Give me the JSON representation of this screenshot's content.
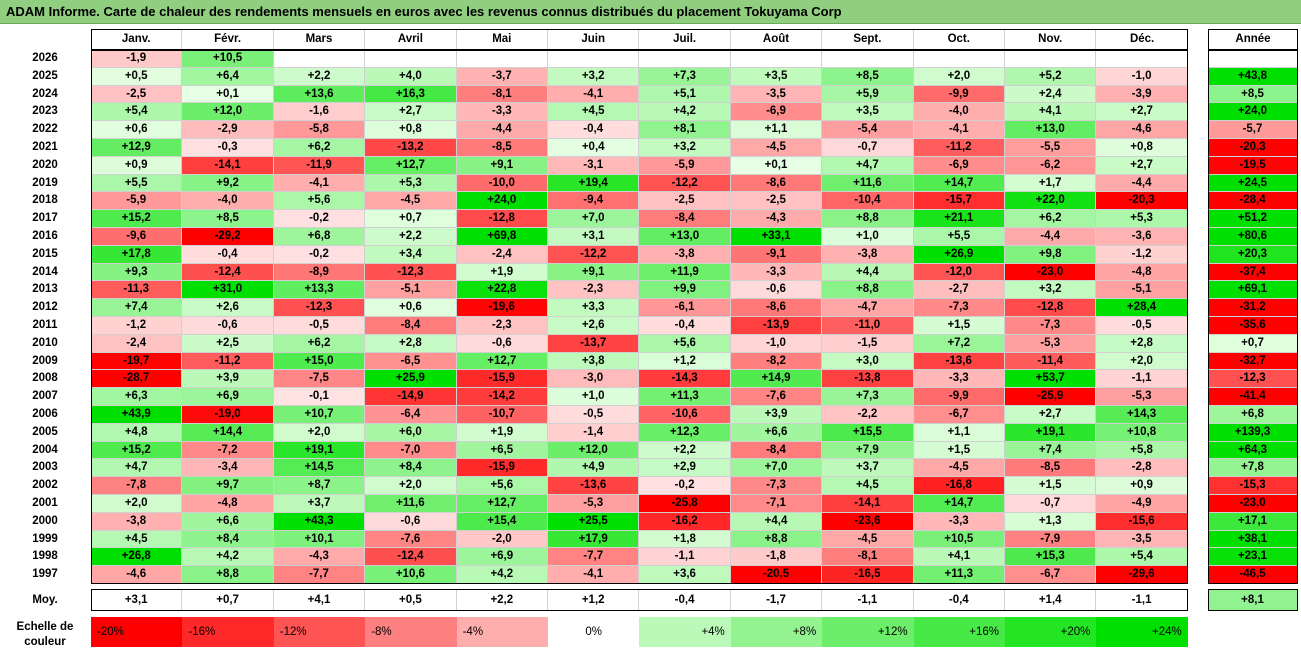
{
  "title": "ADAM Informe. Carte de chaleur des rendements mensuels en euros avec les revenus connus distribués du placement Tokuyama Corp",
  "chart_data": {
    "type": "heatmap",
    "columns": [
      "Janv.",
      "Févr.",
      "Mars",
      "Avril",
      "Mai",
      "Juin",
      "Juil.",
      "Août",
      "Sept.",
      "Oct.",
      "Nov.",
      "Déc."
    ],
    "year_label": "Année",
    "rows": [
      {
        "year": "2026",
        "values": [
          "-1,9",
          "+10,5",
          "",
          "",
          "",
          "",
          "",
          "",
          "",
          "",
          "",
          ""
        ],
        "annual": ""
      },
      {
        "year": "2025",
        "values": [
          "+0,5",
          "+6,4",
          "+2,2",
          "+4,0",
          "-3,7",
          "+3,2",
          "+7,3",
          "+3,5",
          "+8,5",
          "+2,0",
          "+5,2",
          "-1,0"
        ],
        "annual": "+43,8"
      },
      {
        "year": "2024",
        "values": [
          "-2,5",
          "+0,1",
          "+13,6",
          "+16,3",
          "-8,1",
          "-4,1",
          "+5,1",
          "-3,5",
          "+5,9",
          "-9,9",
          "+2,4",
          "-3,9"
        ],
        "annual": "+8,5"
      },
      {
        "year": "2023",
        "values": [
          "+5,4",
          "+12,0",
          "-1,6",
          "+2,7",
          "-3,3",
          "+4,5",
          "+4,2",
          "-6,9",
          "+3,5",
          "-4,0",
          "+4,1",
          "+2,7"
        ],
        "annual": "+24,0"
      },
      {
        "year": "2022",
        "values": [
          "+0,6",
          "-2,9",
          "-5,8",
          "+0,8",
          "-4,4",
          "-0,4",
          "+8,1",
          "+1,1",
          "-5,4",
          "-4,1",
          "+13,0",
          "-4,6"
        ],
        "annual": "-5,7"
      },
      {
        "year": "2021",
        "values": [
          "+12,9",
          "-0,3",
          "+6,2",
          "-13,2",
          "-8,5",
          "+0,4",
          "+3,2",
          "-4,5",
          "-0,7",
          "-11,2",
          "-5,5",
          "+0,8"
        ],
        "annual": "-20,3"
      },
      {
        "year": "2020",
        "values": [
          "+0,9",
          "-14,1",
          "-11,9",
          "+12,7",
          "+9,1",
          "-3,1",
          "-5,9",
          "+0,1",
          "+4,7",
          "-6,9",
          "-6,2",
          "+2,7"
        ],
        "annual": "-19,5"
      },
      {
        "year": "2019",
        "values": [
          "+5,5",
          "+9,2",
          "-4,1",
          "+5,3",
          "-10,0",
          "+19,4",
          "-12,2",
          "-8,6",
          "+11,6",
          "+14,7",
          "+1,7",
          "-4,4"
        ],
        "annual": "+24,5"
      },
      {
        "year": "2018",
        "values": [
          "-5,9",
          "-4,0",
          "+5,6",
          "-4,5",
          "+24,0",
          "-9,4",
          "-2,5",
          "-2,5",
          "-10,4",
          "-15,7",
          "+22,0",
          "-20,3"
        ],
        "annual": "-28,4"
      },
      {
        "year": "2017",
        "values": [
          "+15,2",
          "+8,5",
          "-0,2",
          "+0,7",
          "-12,8",
          "+7,0",
          "-8,4",
          "-4,3",
          "+8,8",
          "+21,1",
          "+6,2",
          "+5,3"
        ],
        "annual": "+51,2"
      },
      {
        "year": "2016",
        "values": [
          "-9,6",
          "-29,2",
          "+6,8",
          "+2,2",
          "+69,8",
          "+3,1",
          "+13,0",
          "+33,1",
          "+1,0",
          "+5,5",
          "-4,4",
          "-3,6"
        ],
        "annual": "+80,6"
      },
      {
        "year": "2015",
        "values": [
          "+17,8",
          "-0,4",
          "-0,2",
          "+3,4",
          "-2,4",
          "-12,2",
          "-3,8",
          "-9,1",
          "-3,8",
          "+26,9",
          "+9,8",
          "-1,2"
        ],
        "annual": "+20,3"
      },
      {
        "year": "2014",
        "values": [
          "+9,3",
          "-12,4",
          "-8,9",
          "-12,3",
          "+1,9",
          "+9,1",
          "+11,9",
          "-3,3",
          "+4,4",
          "-12,0",
          "-23,0",
          "-4,8"
        ],
        "annual": "-37,4"
      },
      {
        "year": "2013",
        "values": [
          "-11,3",
          "+31,0",
          "+13,3",
          "-5,1",
          "+22,8",
          "-2,3",
          "+9,9",
          "-0,6",
          "+8,8",
          "-2,7",
          "+3,2",
          "-5,1"
        ],
        "annual": "+69,1"
      },
      {
        "year": "2012",
        "values": [
          "+7,4",
          "+2,6",
          "-12,3",
          "+0,6",
          "-19,6",
          "+3,3",
          "-6,1",
          "-8,6",
          "-4,7",
          "-7,3",
          "-12,8",
          "+28,4"
        ],
        "annual": "-31,2"
      },
      {
        "year": "2011",
        "values": [
          "-1,2",
          "-0,6",
          "-0,5",
          "-8,4",
          "-2,3",
          "+2,6",
          "-0,4",
          "-13,9",
          "-11,0",
          "+1,5",
          "-7,3",
          "-0,5"
        ],
        "annual": "-35,6"
      },
      {
        "year": "2010",
        "values": [
          "-2,4",
          "+2,5",
          "+6,2",
          "+2,8",
          "-0,6",
          "-13,7",
          "+5,6",
          "-1,0",
          "-1,5",
          "+7,2",
          "-5,3",
          "+2,8"
        ],
        "annual": "+0,7"
      },
      {
        "year": "2009",
        "values": [
          "-19,7",
          "-11,2",
          "+15,0",
          "-6,5",
          "+12,7",
          "+3,8",
          "+1,2",
          "-8,2",
          "+3,0",
          "-13,6",
          "-11,4",
          "+2,0"
        ],
        "annual": "-32,7"
      },
      {
        "year": "2008",
        "values": [
          "-28,7",
          "+3,9",
          "-7,5",
          "+25,9",
          "-15,9",
          "-3,0",
          "-14,3",
          "+14,9",
          "-13,8",
          "-3,3",
          "+53,7",
          "-1,1"
        ],
        "annual": "-12,3"
      },
      {
        "year": "2007",
        "values": [
          "+6,3",
          "+6,9",
          "-0,1",
          "-14,9",
          "-14,2",
          "+1,0",
          "+11,3",
          "-7,6",
          "+7,3",
          "-9,9",
          "-25,9",
          "-5,3"
        ],
        "annual": "-41,4"
      },
      {
        "year": "2006",
        "values": [
          "+43,9",
          "-19,0",
          "+10,7",
          "-6,4",
          "-10,7",
          "-0,5",
          "-10,6",
          "+3,9",
          "-2,2",
          "-6,7",
          "+2,7",
          "+14,3"
        ],
        "annual": "+6,8"
      },
      {
        "year": "2005",
        "values": [
          "+4,8",
          "+14,4",
          "+2,0",
          "+6,0",
          "+1,9",
          "-1,4",
          "+12,3",
          "+6,6",
          "+15,5",
          "+1,1",
          "+19,1",
          "+10,8"
        ],
        "annual": "+139,3"
      },
      {
        "year": "2004",
        "values": [
          "+15,2",
          "-7,2",
          "+19,1",
          "-7,0",
          "+6,5",
          "+12,0",
          "+2,2",
          "-8,4",
          "+7,9",
          "+1,5",
          "+7,4",
          "+5,8"
        ],
        "annual": "+64,3"
      },
      {
        "year": "2003",
        "values": [
          "+4,7",
          "-3,4",
          "+14,5",
          "+8,4",
          "-15,9",
          "+4,9",
          "+2,9",
          "+7,0",
          "+3,7",
          "-4,5",
          "-8,5",
          "-2,8"
        ],
        "annual": "+7,8"
      },
      {
        "year": "2002",
        "values": [
          "-7,8",
          "+9,7",
          "+8,7",
          "+2,0",
          "+5,6",
          "-13,6",
          "-0,2",
          "-7,3",
          "+4,5",
          "-16,8",
          "+1,5",
          "+0,9"
        ],
        "annual": "-15,3"
      },
      {
        "year": "2001",
        "values": [
          "+2,0",
          "-4,8",
          "+3,7",
          "+11,6",
          "+12,7",
          "-5,3",
          "-25,8",
          "-7,1",
          "-14,1",
          "+14,7",
          "-0,7",
          "-4,9"
        ],
        "annual": "-23,0"
      },
      {
        "year": "2000",
        "values": [
          "-3,8",
          "+6,6",
          "+43,3",
          "-0,6",
          "+15,4",
          "+25,5",
          "-16,2",
          "+4,4",
          "-23,6",
          "-3,3",
          "+1,3",
          "-15,6"
        ],
        "annual": "+17,1"
      },
      {
        "year": "1999",
        "values": [
          "+4,5",
          "+8,4",
          "+10,1",
          "-7,6",
          "-2,0",
          "+17,9",
          "+1,8",
          "+8,8",
          "-4,5",
          "+10,5",
          "-7,9",
          "-3,5"
        ],
        "annual": "+38,1"
      },
      {
        "year": "1998",
        "values": [
          "+26,8",
          "+4,2",
          "-4,3",
          "-12,4",
          "+6,9",
          "-7,7",
          "-1,1",
          "-1,8",
          "-8,1",
          "+4,1",
          "+15,3",
          "+5,4"
        ],
        "annual": "+23,1"
      },
      {
        "year": "1997",
        "values": [
          "-4,6",
          "+8,8",
          "-7,7",
          "+10,6",
          "+4,2",
          "-4,1",
          "+3,6",
          "-20,5",
          "-16,5",
          "+11,3",
          "-6,7",
          "-29,6"
        ],
        "annual": "-46,5"
      }
    ],
    "average": {
      "label": "Moy.",
      "values": [
        "+3,1",
        "+0,7",
        "+4,1",
        "+0,5",
        "+2,2",
        "+1,2",
        "-0,4",
        "-1,7",
        "-1,1",
        "-0,4",
        "+1,4",
        "-1,1"
      ],
      "annual": "+8,1"
    },
    "legend": {
      "label": "Echelle de\ncouleur",
      "steps": [
        "-20%",
        "-16%",
        "-12%",
        "-8%",
        "-4%",
        "0%",
        "+4%",
        "+8%",
        "+12%",
        "+16%",
        "+20%",
        "+24%"
      ]
    },
    "colors": {
      "neg_max": "#ff0000",
      "pos_max": "#00e000",
      "neutral": "#ffffff"
    }
  }
}
